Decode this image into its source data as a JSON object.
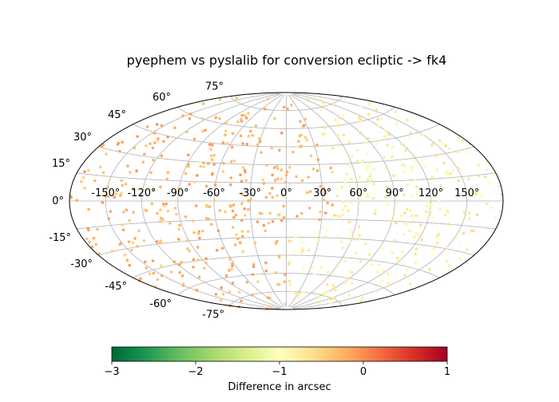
{
  "chart_data": {
    "type": "scatter",
    "projection": "aitoff",
    "title": "pyephem vs pyslalib for conversion ecliptic -> fk4",
    "grid": true,
    "longitude_ticks": [
      "-150°",
      "-120°",
      "-90°",
      "-60°",
      "-30°",
      "0°",
      "30°",
      "60°",
      "90°",
      "120°",
      "150°"
    ],
    "latitude_ticks_north": [
      "0°",
      "15°",
      "30°",
      "45°",
      "60°",
      "75°"
    ],
    "latitude_ticks_south": [
      "-15°",
      "-30°",
      "-45°",
      "-60°",
      "-75°"
    ],
    "longitude_tick_values": [
      -150,
      -120,
      -90,
      -60,
      -30,
      0,
      30,
      60,
      90,
      120,
      150
    ],
    "latitude_tick_values_north": [
      0,
      15,
      30,
      45,
      60,
      75
    ],
    "latitude_tick_values_south": [
      -15,
      -30,
      -45,
      -60,
      -75
    ],
    "colorbar": {
      "label": "Difference in arcsec",
      "vmin": -3,
      "vmax": 1,
      "colormap": "RdYlGn_r",
      "ticks": [
        -3,
        -2,
        -1,
        0,
        1
      ],
      "tick_labels": [
        "−3",
        "−2",
        "−1",
        "0",
        "1"
      ]
    },
    "series": [
      {
        "values_description_hidden": true,
        "point_count": 700,
        "lon_range": [
          -180,
          180
        ],
        "lat_range": [
          -90,
          90
        ],
        "value_range": [
          -1.3,
          0.3
        ]
      }
    ]
  },
  "colors": {
    "grid": "#b0b0b0",
    "frame": "#000000"
  }
}
